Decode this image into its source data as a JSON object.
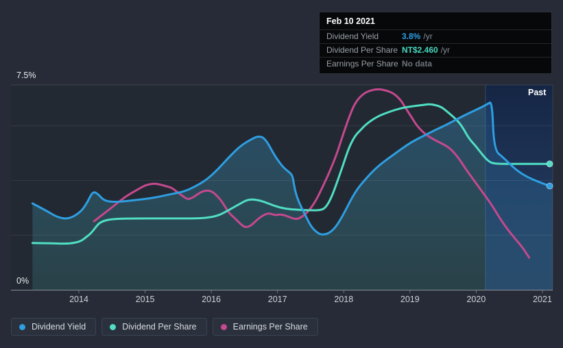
{
  "colors": {
    "page_bg": "#262B37",
    "plot_bg": "#232933",
    "tooltip_bg": "#060809",
    "axis_line": "#8A9099",
    "blue": "#2E9FE2",
    "teal": "#50DFC4",
    "pink": "#C4498E"
  },
  "tooltip": {
    "title": "Feb 10 2021",
    "rows": [
      {
        "label": "Dividend Yield",
        "value": "3.8%",
        "suffix": "/yr",
        "value_color": "#2F9FE8"
      },
      {
        "label": "Dividend Per Share",
        "value": "NT$2.460",
        "suffix": "/yr",
        "value_color": "#49D9C2"
      },
      {
        "label": "Earnings Per Share",
        "value": "No data",
        "suffix": "",
        "value_color": "#6F757D"
      }
    ]
  },
  "legend": {
    "items": [
      {
        "label": "Dividend Yield",
        "color": "#2E9FE2"
      },
      {
        "label": "Dividend Per Share",
        "color": "#50DFC4"
      },
      {
        "label": "Earnings Per Share",
        "color": "#C4498E"
      }
    ]
  },
  "chart_data": {
    "type": "line",
    "x_axis": {
      "years": [
        2014,
        2015,
        2016,
        2017,
        2018,
        2019,
        2020,
        2021
      ],
      "labels": [
        "2014",
        "2015",
        "2016",
        "2017",
        "2018",
        "2019",
        "2020",
        "2021"
      ],
      "range": [
        2013.3,
        2021.15
      ]
    },
    "y_axis": {
      "top_label": "7.5%",
      "bottom_label": "0%",
      "min": 0,
      "max": 7.5,
      "gridlines_pct": [
        2,
        4,
        6
      ],
      "grid": true
    },
    "past_label": "Past",
    "past_region_start_year": 2020.14,
    "legend_position": "bottom-left",
    "series": [
      {
        "name": "Dividend Yield",
        "color": "#2E9FE2",
        "unit": "%",
        "area_fill": true,
        "end_dot": true,
        "latest": "3.8% /yr",
        "points": [
          [
            2013.3,
            3.16
          ],
          [
            2013.5,
            2.91
          ],
          [
            2013.67,
            2.66
          ],
          [
            2013.84,
            2.58
          ],
          [
            2014.02,
            2.83
          ],
          [
            2014.12,
            3.16
          ],
          [
            2014.21,
            3.61
          ],
          [
            2014.29,
            3.51
          ],
          [
            2014.38,
            3.26
          ],
          [
            2014.54,
            3.21
          ],
          [
            2014.7,
            3.24
          ],
          [
            2014.88,
            3.29
          ],
          [
            2015.06,
            3.34
          ],
          [
            2015.22,
            3.41
          ],
          [
            2015.4,
            3.51
          ],
          [
            2015.58,
            3.59
          ],
          [
            2015.74,
            3.76
          ],
          [
            2015.92,
            4.01
          ],
          [
            2016.1,
            4.41
          ],
          [
            2016.26,
            4.84
          ],
          [
            2016.44,
            5.27
          ],
          [
            2016.61,
            5.52
          ],
          [
            2016.72,
            5.64
          ],
          [
            2016.82,
            5.52
          ],
          [
            2016.95,
            4.94
          ],
          [
            2017.05,
            4.59
          ],
          [
            2017.12,
            4.41
          ],
          [
            2017.2,
            4.26
          ],
          [
            2017.23,
            4.14
          ],
          [
            2017.26,
            3.66
          ],
          [
            2017.32,
            3.21
          ],
          [
            2017.4,
            2.83
          ],
          [
            2017.5,
            2.33
          ],
          [
            2017.6,
            2.08
          ],
          [
            2017.68,
            2.01
          ],
          [
            2017.79,
            2.08
          ],
          [
            2017.89,
            2.33
          ],
          [
            2018.0,
            2.78
          ],
          [
            2018.17,
            3.59
          ],
          [
            2018.34,
            4.09
          ],
          [
            2018.51,
            4.51
          ],
          [
            2018.69,
            4.84
          ],
          [
            2018.86,
            5.14
          ],
          [
            2019.03,
            5.42
          ],
          [
            2019.21,
            5.64
          ],
          [
            2019.37,
            5.84
          ],
          [
            2019.55,
            6.04
          ],
          [
            2019.73,
            6.27
          ],
          [
            2019.89,
            6.47
          ],
          [
            2020.07,
            6.67
          ],
          [
            2020.17,
            6.8
          ],
          [
            2020.24,
            6.9
          ],
          [
            2020.27,
            5.12
          ],
          [
            2020.41,
            4.84
          ],
          [
            2020.59,
            4.41
          ],
          [
            2020.76,
            4.14
          ],
          [
            2020.93,
            3.96
          ],
          [
            2021.11,
            3.8
          ]
        ]
      },
      {
        "name": "Dividend Per Share",
        "color": "#50DFC4",
        "unit": "NT$ (hidden scale, values in %-axis units)",
        "area_fill": false,
        "end_dot": true,
        "latest": "NT$2.460 /yr",
        "points": [
          [
            2013.3,
            1.71
          ],
          [
            2013.6,
            1.7
          ],
          [
            2013.84,
            1.68
          ],
          [
            2014.02,
            1.76
          ],
          [
            2014.1,
            1.91
          ],
          [
            2014.19,
            2.08
          ],
          [
            2014.29,
            2.41
          ],
          [
            2014.36,
            2.51
          ],
          [
            2014.47,
            2.58
          ],
          [
            2014.7,
            2.61
          ],
          [
            2015.4,
            2.61
          ],
          [
            2015.74,
            2.61
          ],
          [
            2015.92,
            2.63
          ],
          [
            2016.1,
            2.71
          ],
          [
            2016.26,
            2.91
          ],
          [
            2016.44,
            3.16
          ],
          [
            2016.54,
            3.29
          ],
          [
            2016.64,
            3.31
          ],
          [
            2016.78,
            3.24
          ],
          [
            2016.96,
            3.06
          ],
          [
            2017.13,
            2.96
          ],
          [
            2017.3,
            2.93
          ],
          [
            2017.47,
            2.91
          ],
          [
            2017.65,
            2.91
          ],
          [
            2017.73,
            3.01
          ],
          [
            2017.82,
            3.41
          ],
          [
            2017.91,
            4.01
          ],
          [
            2018.0,
            4.64
          ],
          [
            2018.08,
            5.22
          ],
          [
            2018.17,
            5.64
          ],
          [
            2018.25,
            5.84
          ],
          [
            2018.34,
            6.07
          ],
          [
            2018.51,
            6.35
          ],
          [
            2018.69,
            6.52
          ],
          [
            2018.86,
            6.65
          ],
          [
            2019.03,
            6.72
          ],
          [
            2019.21,
            6.77
          ],
          [
            2019.29,
            6.8
          ],
          [
            2019.37,
            6.77
          ],
          [
            2019.47,
            6.7
          ],
          [
            2019.55,
            6.55
          ],
          [
            2019.73,
            6.17
          ],
          [
            2019.81,
            5.89
          ],
          [
            2019.89,
            5.54
          ],
          [
            2019.99,
            5.27
          ],
          [
            2020.07,
            5.02
          ],
          [
            2020.15,
            4.79
          ],
          [
            2020.2,
            4.69
          ],
          [
            2020.24,
            4.64
          ],
          [
            2020.33,
            4.61
          ],
          [
            2020.7,
            4.61
          ],
          [
            2021.11,
            4.61
          ]
        ]
      },
      {
        "name": "Earnings Per Share",
        "color": "#C4498E",
        "unit": "NT$ (hidden scale, values in %-axis units)",
        "area_fill": false,
        "end_dot": false,
        "latest": "No data",
        "points": [
          [
            2014.23,
            2.51
          ],
          [
            2014.36,
            2.76
          ],
          [
            2014.54,
            3.09
          ],
          [
            2014.7,
            3.41
          ],
          [
            2014.88,
            3.66
          ],
          [
            2014.99,
            3.81
          ],
          [
            2015.06,
            3.86
          ],
          [
            2015.14,
            3.89
          ],
          [
            2015.22,
            3.86
          ],
          [
            2015.32,
            3.79
          ],
          [
            2015.4,
            3.74
          ],
          [
            2015.48,
            3.59
          ],
          [
            2015.58,
            3.41
          ],
          [
            2015.64,
            3.31
          ],
          [
            2015.71,
            3.36
          ],
          [
            2015.8,
            3.51
          ],
          [
            2015.87,
            3.61
          ],
          [
            2015.95,
            3.64
          ],
          [
            2016.02,
            3.59
          ],
          [
            2016.1,
            3.41
          ],
          [
            2016.18,
            3.16
          ],
          [
            2016.26,
            2.83
          ],
          [
            2016.36,
            2.61
          ],
          [
            2016.44,
            2.41
          ],
          [
            2016.51,
            2.28
          ],
          [
            2016.59,
            2.33
          ],
          [
            2016.7,
            2.58
          ],
          [
            2016.78,
            2.73
          ],
          [
            2016.87,
            2.81
          ],
          [
            2016.96,
            2.73
          ],
          [
            2017.04,
            2.76
          ],
          [
            2017.11,
            2.73
          ],
          [
            2017.18,
            2.66
          ],
          [
            2017.27,
            2.58
          ],
          [
            2017.35,
            2.63
          ],
          [
            2017.47,
            2.88
          ],
          [
            2017.58,
            3.26
          ],
          [
            2017.68,
            3.76
          ],
          [
            2017.79,
            4.34
          ],
          [
            2017.89,
            4.94
          ],
          [
            2017.99,
            5.69
          ],
          [
            2018.08,
            6.32
          ],
          [
            2018.17,
            6.85
          ],
          [
            2018.3,
            7.2
          ],
          [
            2018.43,
            7.32
          ],
          [
            2018.53,
            7.35
          ],
          [
            2018.64,
            7.3
          ],
          [
            2018.75,
            7.2
          ],
          [
            2018.86,
            6.95
          ],
          [
            2018.93,
            6.67
          ],
          [
            2019.03,
            6.3
          ],
          [
            2019.1,
            6.02
          ],
          [
            2019.21,
            5.74
          ],
          [
            2019.31,
            5.57
          ],
          [
            2019.41,
            5.44
          ],
          [
            2019.55,
            5.27
          ],
          [
            2019.63,
            5.12
          ],
          [
            2019.73,
            4.84
          ],
          [
            2019.81,
            4.54
          ],
          [
            2019.89,
            4.26
          ],
          [
            2020.07,
            3.66
          ],
          [
            2020.24,
            3.09
          ],
          [
            2020.41,
            2.41
          ],
          [
            2020.59,
            1.86
          ],
          [
            2020.69,
            1.58
          ],
          [
            2020.8,
            1.18
          ]
        ]
      }
    ]
  }
}
